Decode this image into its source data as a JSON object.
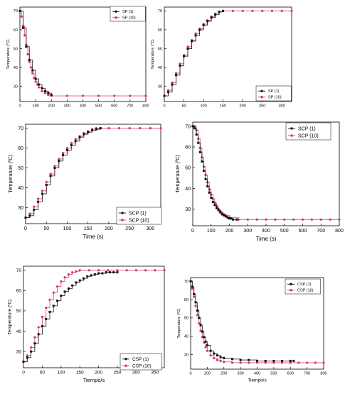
{
  "chart_data": [
    {
      "type": "scatter",
      "xlabel": "",
      "ylabel": "Temperature (°C)",
      "xlim": [
        0,
        800
      ],
      "ylim": [
        22,
        72
      ],
      "xticks": [
        0,
        100,
        200,
        300,
        400,
        500,
        600,
        700,
        800
      ],
      "yticks": [
        30,
        40,
        50,
        60,
        70
      ],
      "grid": false,
      "legend_position": "top-right",
      "series": [
        {
          "name": "SP (1)",
          "color": "#111111",
          "marker": "square",
          "x": [
            0,
            20,
            40,
            60,
            80,
            100,
            120,
            140,
            160,
            180,
            200
          ],
          "y": [
            70,
            61,
            51,
            44,
            38.5,
            34,
            31,
            29,
            27.5,
            26.5,
            25.5
          ]
        },
        {
          "name": "SP (10)",
          "color": "#d6337a",
          "marker": "circle",
          "x": [
            0,
            10,
            20,
            30,
            40,
            50,
            60,
            70,
            80,
            90,
            100,
            110,
            120,
            140,
            160,
            180,
            200,
            300,
            400,
            500,
            600,
            700,
            800
          ],
          "y": [
            70,
            67,
            62,
            57,
            52,
            47,
            43,
            40,
            37,
            34.5,
            32.5,
            31,
            29.5,
            27.5,
            26.5,
            25.5,
            25,
            25,
            25,
            25,
            25,
            25,
            25
          ]
        }
      ]
    },
    {
      "type": "scatter",
      "xlabel": "",
      "ylabel": "Temperature (°C)",
      "xlim": [
        0,
        325
      ],
      "ylim": [
        22,
        72
      ],
      "xticks": [
        0,
        50,
        100,
        150,
        200,
        250,
        300
      ],
      "yticks": [
        30,
        40,
        50,
        60,
        70
      ],
      "grid": false,
      "legend_position": "bottom-right",
      "series": [
        {
          "name": "SP (1)",
          "color": "#111111",
          "marker": "square",
          "x": [
            0,
            10,
            20,
            30,
            40,
            50,
            60,
            70,
            80,
            90,
            100,
            110,
            120,
            130,
            140,
            150
          ],
          "y": [
            25,
            27,
            31,
            36,
            41,
            46,
            50,
            54,
            57,
            60,
            62.5,
            64.5,
            66.5,
            68,
            69.5,
            70
          ]
        },
        {
          "name": "SP (10)",
          "color": "#d6337a",
          "marker": "circle",
          "x": [
            0,
            10,
            20,
            30,
            40,
            50,
            60,
            70,
            80,
            90,
            100,
            110,
            120,
            130,
            140,
            150,
            175,
            200,
            225,
            250,
            275,
            300,
            325
          ],
          "y": [
            25,
            28,
            32,
            37,
            42,
            46.5,
            51,
            54.5,
            58,
            60.5,
            63,
            65,
            67,
            68.5,
            69.5,
            70,
            70,
            70,
            70,
            70,
            70,
            70,
            70
          ]
        }
      ]
    },
    {
      "type": "scatter",
      "xlabel": "Time (s)",
      "ylabel": "Temperature (ºC)",
      "xlim": [
        0,
        325
      ],
      "ylim": [
        22,
        72
      ],
      "xticks": [
        0,
        50,
        100,
        150,
        200,
        250,
        300
      ],
      "yticks": [
        30,
        40,
        50,
        60,
        70
      ],
      "grid": false,
      "legend_position": "bottom-right",
      "series": [
        {
          "name": "SCP (1)",
          "color": "#111111",
          "marker": "square",
          "x": [
            0,
            10,
            20,
            30,
            40,
            50,
            60,
            70,
            80,
            90,
            100,
            110,
            120,
            130,
            140,
            150,
            160,
            170,
            180
          ],
          "y": [
            25,
            26,
            29,
            33,
            37,
            41.5,
            46,
            50,
            53.5,
            56.5,
            59,
            61.5,
            63.5,
            65.5,
            67,
            68,
            69,
            69.5,
            70
          ]
        },
        {
          "name": "SCP (10)",
          "color": "#d6337a",
          "marker": "circle",
          "x": [
            0,
            10,
            20,
            30,
            40,
            50,
            60,
            70,
            80,
            90,
            100,
            110,
            120,
            130,
            140,
            150,
            160,
            170,
            180,
            200,
            225,
            250,
            275,
            300,
            325
          ],
          "y": [
            25,
            27,
            30.5,
            34.5,
            38.5,
            43,
            47,
            51,
            54.5,
            57.5,
            60,
            62.5,
            64.5,
            66,
            67.5,
            68.5,
            69.5,
            70,
            70,
            70,
            70,
            70,
            70,
            70,
            70
          ]
        }
      ]
    },
    {
      "type": "scatter",
      "xlabel": "Time (s)",
      "ylabel": "Temperature (ºC)",
      "xlim": [
        0,
        800
      ],
      "ylim": [
        22,
        72
      ],
      "xticks": [
        0,
        100,
        200,
        300,
        400,
        500,
        600,
        700,
        800
      ],
      "yticks": [
        30,
        40,
        50,
        60,
        70
      ],
      "grid": false,
      "legend_position": "top-right",
      "series": [
        {
          "name": "SCP (1)",
          "color": "#111111",
          "marker": "square",
          "x": [
            0,
            10,
            20,
            30,
            40,
            50,
            60,
            70,
            80,
            90,
            100,
            110,
            120,
            130,
            140,
            150,
            160,
            170,
            180,
            190,
            200,
            210,
            220,
            240
          ],
          "y": [
            70,
            69,
            66,
            62,
            57.5,
            53,
            48.5,
            44.5,
            41,
            38,
            35.5,
            33.5,
            32,
            30.5,
            29.5,
            28.5,
            27.5,
            27,
            26.5,
            26,
            25.5,
            25.5,
            25,
            25
          ]
        },
        {
          "name": "SCP (10)",
          "color": "#d6337a",
          "marker": "circle",
          "x": [
            0,
            10,
            20,
            30,
            40,
            50,
            60,
            70,
            80,
            90,
            100,
            110,
            120,
            130,
            140,
            150,
            160,
            170,
            180,
            200,
            250,
            300,
            350,
            400,
            450,
            500,
            550,
            600,
            650,
            700,
            750,
            800
          ],
          "y": [
            70,
            70,
            68,
            64,
            59.5,
            55,
            50.5,
            46.5,
            43,
            39.5,
            37,
            35,
            33,
            31.5,
            30,
            29,
            28,
            27.5,
            27,
            26,
            25,
            25,
            25,
            25,
            25,
            25,
            25,
            25,
            25,
            25,
            25,
            25
          ]
        }
      ]
    },
    {
      "type": "scatter",
      "xlabel": "Tiempo/s",
      "ylabel": "Temperature (ºC)",
      "xlim": [
        0,
        375
      ],
      "ylim": [
        22,
        72
      ],
      "xticks": [
        0,
        50,
        100,
        150,
        200,
        250,
        300,
        350
      ],
      "yticks": [
        30,
        40,
        50,
        60,
        70
      ],
      "grid": false,
      "legend_position": "bottom-right",
      "series": [
        {
          "name": "CSP (1)",
          "color": "#111111",
          "marker": "square",
          "x": [
            0,
            10,
            20,
            30,
            40,
            50,
            60,
            70,
            80,
            90,
            100,
            110,
            120,
            130,
            140,
            150,
            160,
            170,
            180,
            190,
            200,
            210,
            220,
            230,
            240,
            250
          ],
          "y": [
            25,
            27,
            30,
            34,
            38.5,
            42.5,
            46,
            49.5,
            52.5,
            55,
            57.5,
            59.5,
            61,
            62.5,
            64,
            65,
            66,
            67,
            67.5,
            68,
            68.5,
            68.5,
            69,
            69,
            69,
            69
          ]
        },
        {
          "name": "CSP (10)",
          "color": "#d6337a",
          "marker": "circle",
          "x": [
            0,
            10,
            20,
            30,
            40,
            50,
            60,
            70,
            80,
            90,
            100,
            110,
            120,
            130,
            140,
            150,
            175,
            200,
            225,
            250,
            275,
            300,
            325,
            350,
            375
          ],
          "y": [
            25,
            28,
            32,
            37,
            42,
            47,
            51.5,
            55.5,
            59,
            62,
            64.5,
            66.5,
            68,
            69,
            69.5,
            70,
            70,
            70,
            70,
            70,
            70,
            70,
            70,
            70,
            70
          ]
        }
      ]
    },
    {
      "type": "scatter",
      "xlabel": "Tiempo/s",
      "ylabel": "Temperature (ºC)",
      "xlim": [
        0,
        800
      ],
      "ylim": [
        22,
        72
      ],
      "xticks": [
        0,
        100,
        200,
        300,
        400,
        500,
        600,
        700,
        800
      ],
      "yticks": [
        30,
        40,
        50,
        60,
        70
      ],
      "grid": false,
      "legend_position": "top-right",
      "series": [
        {
          "name": "CSP (1)",
          "color": "#111111",
          "marker": "square",
          "x": [
            0,
            10,
            20,
            30,
            40,
            50,
            60,
            70,
            80,
            90,
            100,
            120,
            140,
            160,
            180,
            200,
            250,
            300,
            350,
            400,
            450,
            500,
            550,
            600,
            620
          ],
          "y": [
            70,
            67,
            63,
            58.5,
            54,
            50,
            46,
            42.5,
            39.5,
            37,
            35,
            32,
            30.5,
            29.5,
            28.5,
            28,
            27.5,
            27,
            27,
            26.5,
            26.5,
            26.5,
            26.5,
            26.5,
            26.5
          ]
        },
        {
          "name": "CSP (10)",
          "color": "#d6337a",
          "marker": "circle",
          "x": [
            0,
            10,
            20,
            30,
            40,
            50,
            60,
            70,
            80,
            90,
            100,
            120,
            140,
            160,
            180,
            200,
            250,
            300,
            350,
            400,
            450,
            500,
            550,
            600,
            650,
            700,
            750,
            800
          ],
          "y": [
            70,
            66,
            61.5,
            56.5,
            51.5,
            47,
            43,
            39.5,
            36.5,
            34,
            32,
            29.5,
            28,
            27,
            26.5,
            26,
            25.5,
            25.5,
            25.5,
            25.5,
            25.5,
            25.5,
            25.5,
            25.5,
            25.5,
            25.5,
            25.5,
            25.5
          ]
        }
      ]
    }
  ]
}
